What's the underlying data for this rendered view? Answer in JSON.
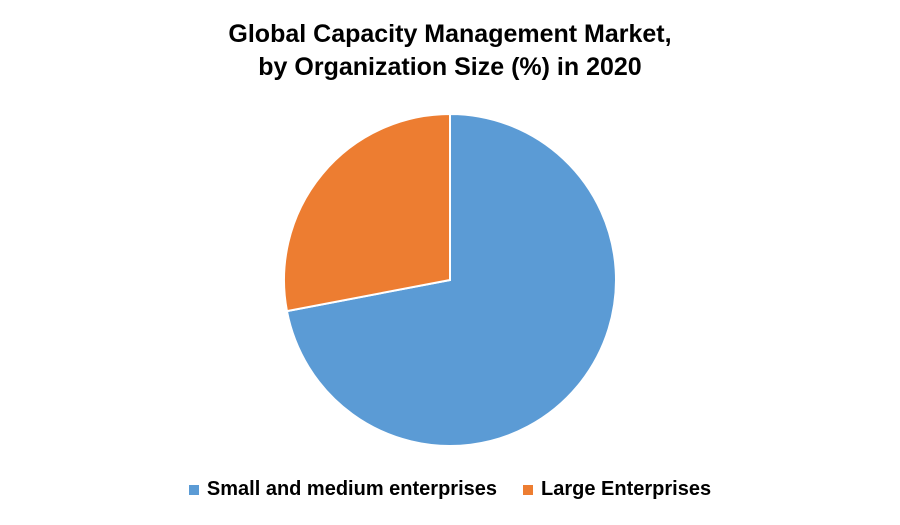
{
  "chart_data": {
    "type": "pie",
    "title_lines": [
      "Global Capacity Management Market,",
      "by Organization Size (%) in 2020"
    ],
    "categories": [
      "Small and medium enterprises",
      "Large Enterprises"
    ],
    "values": [
      72,
      28
    ],
    "colors": [
      "#5B9BD5",
      "#ED7D31"
    ],
    "legend_position": "bottom"
  }
}
